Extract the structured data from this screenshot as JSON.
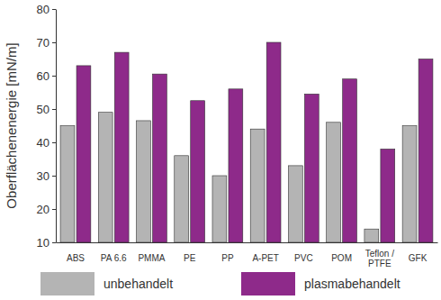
{
  "chart_data": {
    "type": "bar",
    "y_label": "Oberflächenenergie [mN/m]",
    "categories": [
      "ABS",
      "PA 6.6",
      "PMMA",
      "PE",
      "PP",
      "A-PET",
      "PVC",
      "POM",
      "Teflon / PTFE",
      "GFK"
    ],
    "series": [
      {
        "name": "unbehandelt",
        "color": "#b4b4b4",
        "values": [
          45,
          49,
          46.5,
          36,
          30,
          44,
          33,
          46,
          14,
          45
        ]
      },
      {
        "name": "plasmabehandelt",
        "color": "#8e2a8a",
        "values": [
          63,
          67,
          60.5,
          52.5,
          56,
          70,
          54.5,
          59,
          38,
          65
        ]
      }
    ],
    "ylim": [
      10,
      80
    ],
    "yticks": [
      10,
      20,
      30,
      40,
      50,
      60,
      70,
      80
    ],
    "grid": false,
    "legend": "bottom"
  }
}
